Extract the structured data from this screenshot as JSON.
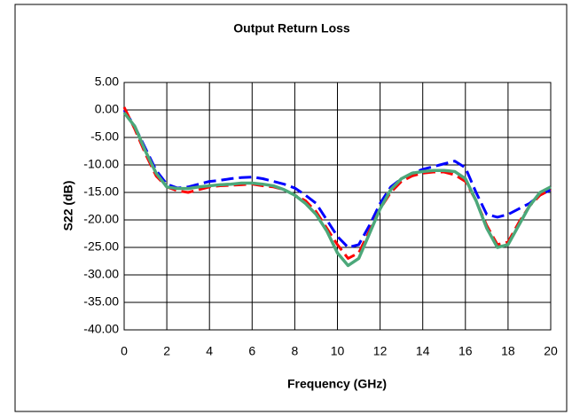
{
  "chart_data": {
    "type": "line",
    "title": "Output Return Loss",
    "x_label": "Frequency (GHz)",
    "y_label": "S22 (dB)",
    "x": [
      0,
      0.5,
      1,
      1.5,
      2,
      2.5,
      3,
      3.5,
      4,
      4.5,
      5,
      5.5,
      6,
      6.5,
      7,
      7.5,
      8,
      8.5,
      9,
      9.5,
      10,
      10.5,
      11,
      11.5,
      12,
      12.5,
      13,
      13.5,
      14,
      14.5,
      15,
      15.5,
      16,
      16.5,
      17,
      17.5,
      18,
      18.5,
      19,
      19.5,
      20
    ],
    "series": [
      {
        "color": "#0000ff",
        "dash": true,
        "values": [
          0,
          -3,
          -7,
          -11,
          -13.5,
          -14.2,
          -14,
          -13.5,
          -13,
          -12.8,
          -12.5,
          -12.3,
          -12.2,
          -12.5,
          -13,
          -13.5,
          -14.2,
          -15.5,
          -17,
          -20,
          -23,
          -25,
          -24.5,
          -21,
          -17,
          -14,
          -12.5,
          -11.5,
          -10.8,
          -10.3,
          -9.8,
          -9.3,
          -10.5,
          -15,
          -19,
          -19.5,
          -19,
          -18,
          -17,
          -15.5,
          -14.5
        ]
      },
      {
        "color": "#ff0000",
        "dash": true,
        "values": [
          0.5,
          -3.5,
          -8,
          -12,
          -14,
          -14.7,
          -15,
          -14.5,
          -14,
          -13.8,
          -13.7,
          -13.6,
          -13.5,
          -13.8,
          -14,
          -14.5,
          -15.5,
          -16.5,
          -18.5,
          -21.5,
          -24.5,
          -27,
          -26,
          -22,
          -18,
          -15,
          -13,
          -12,
          -11.5,
          -11.3,
          -11.3,
          -11.8,
          -13,
          -16.5,
          -21,
          -24.5,
          -24,
          -20.5,
          -17.5,
          -15.5,
          -14.5
        ]
      },
      {
        "color": "#4ca87a",
        "dash": false,
        "values": [
          -0.5,
          -3,
          -7.5,
          -11.5,
          -14,
          -14.3,
          -14.3,
          -14,
          -13.8,
          -13.6,
          -13.5,
          -13.3,
          -13.3,
          -13.5,
          -13.8,
          -14.5,
          -15.5,
          -17,
          -19,
          -22,
          -26,
          -28.3,
          -27,
          -22.5,
          -18,
          -14.5,
          -12.5,
          -11.5,
          -11.2,
          -11,
          -11,
          -11.2,
          -12.5,
          -16.5,
          -21.5,
          -25,
          -24.5,
          -21,
          -17.5,
          -15,
          -14
        ]
      }
    ],
    "xlim": [
      0,
      20
    ],
    "xticks": [
      0,
      2,
      4,
      6,
      8,
      10,
      12,
      14,
      16,
      18,
      20
    ],
    "ylim": [
      -40,
      5
    ],
    "yticks": [
      {
        "value": 5,
        "label": "5.00"
      },
      {
        "value": 0,
        "label": "0.00"
      },
      {
        "value": -5,
        "label": "-5.00"
      },
      {
        "value": -10,
        "label": "-10.00"
      },
      {
        "value": -15,
        "label": "-15.00"
      },
      {
        "value": -20,
        "label": "-20.00"
      },
      {
        "value": -25,
        "label": "-25.00"
      },
      {
        "value": -30,
        "label": "-30.00"
      },
      {
        "value": -35,
        "label": "-35.00"
      },
      {
        "value": -40,
        "label": "-40.00"
      }
    ],
    "grid": true
  }
}
